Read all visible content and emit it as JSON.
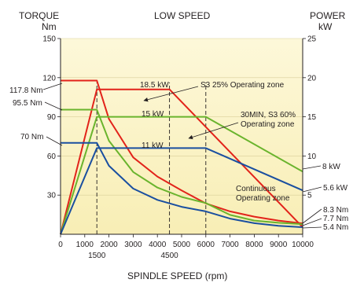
{
  "chart_data": {
    "type": "line",
    "title": "LOW SPEED",
    "xlabel": "SPINDLE SPEED (rpm)",
    "left_axis": {
      "title": "TORQUE",
      "unit": "Nm",
      "range": [
        0,
        150
      ],
      "ticks": [
        30,
        60,
        90,
        120,
        150
      ]
    },
    "right_axis": {
      "title": "POWER",
      "unit": "kW",
      "range": [
        0,
        25
      ],
      "ticks": [
        5,
        10,
        15,
        20,
        25
      ]
    },
    "x_range": [
      0,
      10000
    ],
    "x_ticks": [
      0,
      1000,
      2000,
      3000,
      4000,
      5000,
      6000,
      7000,
      8000,
      9000,
      10000
    ],
    "x_extra_ticks": [
      1500,
      4500
    ],
    "vlines": [
      1500,
      4500,
      6000
    ],
    "background": "#fdf7d2",
    "series": [
      {
        "name": "S3 25% Operating zone",
        "color": "#e2231a",
        "power_kw": {
          "x": [
            0,
            1500,
            4500,
            10000
          ],
          "y": [
            0,
            18.5,
            18.5,
            0.9
          ]
        },
        "torque_nm": {
          "x": [
            0,
            1500,
            2000,
            3000,
            4000,
            5000,
            6000,
            7000,
            8000,
            9000,
            10000
          ],
          "y": [
            117.8,
            117.8,
            88.3,
            58.9,
            44.2,
            33.6,
            23.6,
            17.5,
            13.5,
            10.5,
            8.3
          ]
        }
      },
      {
        "name": "30MIN, S3 60% Operating zone",
        "color": "#6ab42d",
        "power_kw": {
          "x": [
            0,
            1500,
            6000,
            10000
          ],
          "y": [
            0,
            15,
            15,
            8
          ]
        },
        "torque_nm": {
          "x": [
            0,
            1500,
            2000,
            3000,
            4000,
            5000,
            6000,
            7000,
            8000,
            9000,
            10000
          ],
          "y": [
            95.5,
            95.5,
            71.6,
            47.7,
            35.8,
            28.6,
            23.9,
            14.8,
            10.5,
            8.8,
            7.7
          ]
        }
      },
      {
        "name": "Continuous Operating zone",
        "color": "#1a4fa0",
        "power_kw": {
          "x": [
            0,
            1500,
            6000,
            10000
          ],
          "y": [
            0,
            11,
            11,
            5.6
          ]
        },
        "torque_nm": {
          "x": [
            0,
            1500,
            2000,
            3000,
            4000,
            5000,
            6000,
            7000,
            8000,
            9000,
            10000
          ],
          "y": [
            70,
            70,
            52.5,
            35,
            26.3,
            21,
            17.5,
            12,
            8.5,
            6.5,
            5.4
          ]
        }
      }
    ],
    "labels": {
      "left_values": [
        "117.8 Nm",
        "95.5 Nm",
        "70 Nm"
      ],
      "power_values": [
        "18.5 kW",
        "15 kW",
        "11 kW"
      ],
      "right_values": [
        "8 kW",
        "5.6 kW",
        "8.3 Nm",
        "7.7 Nm",
        "5.4 Nm"
      ],
      "zones": [
        "S3 25% Operating zone",
        "30MIN, S3 60%",
        "Operating zone",
        "Continuous",
        "Operating zone"
      ]
    }
  }
}
